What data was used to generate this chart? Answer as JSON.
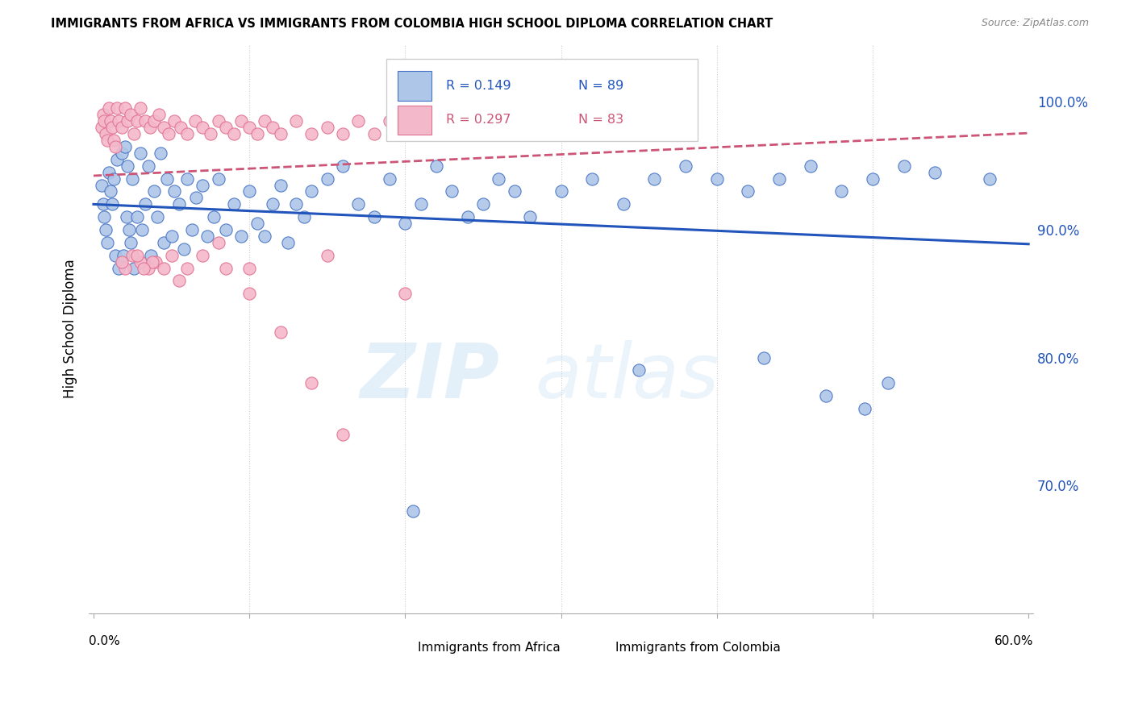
{
  "title": "IMMIGRANTS FROM AFRICA VS IMMIGRANTS FROM COLOMBIA HIGH SCHOOL DIPLOMA CORRELATION CHART",
  "source": "Source: ZipAtlas.com",
  "ylabel": "High School Diploma",
  "xlim": [
    0.0,
    0.6
  ],
  "ylim": [
    0.6,
    1.045
  ],
  "watermark_zip": "ZIP",
  "watermark_atlas": "atlas",
  "legend_africa_R": "R = 0.149",
  "legend_africa_N": "N = 89",
  "legend_colombia_R": "R = 0.297",
  "legend_colombia_N": "N = 83",
  "africa_fill_color": "#aec6e8",
  "africa_edge_color": "#4472c4",
  "colombia_fill_color": "#f4b8cb",
  "colombia_edge_color": "#e07090",
  "africa_line_color": "#2255bb",
  "colombia_line_color": "#cc5577",
  "ytick_values": [
    0.7,
    0.8,
    0.9,
    1.0
  ],
  "ytick_labels": [
    "70.0%",
    "80.0%",
    "90.0%",
    "100.0%"
  ],
  "africa_x": [
    0.005,
    0.006,
    0.007,
    0.008,
    0.009,
    0.01,
    0.011,
    0.012,
    0.013,
    0.014,
    0.015,
    0.016,
    0.018,
    0.019,
    0.02,
    0.021,
    0.022,
    0.023,
    0.024,
    0.025,
    0.026,
    0.028,
    0.03,
    0.031,
    0.033,
    0.035,
    0.037,
    0.039,
    0.041,
    0.043,
    0.045,
    0.047,
    0.05,
    0.052,
    0.055,
    0.058,
    0.06,
    0.063,
    0.066,
    0.07,
    0.073,
    0.077,
    0.08,
    0.085,
    0.09,
    0.095,
    0.1,
    0.105,
    0.11,
    0.115,
    0.12,
    0.125,
    0.13,
    0.135,
    0.14,
    0.15,
    0.16,
    0.17,
    0.18,
    0.19,
    0.2,
    0.21,
    0.22,
    0.23,
    0.24,
    0.25,
    0.26,
    0.27,
    0.28,
    0.3,
    0.32,
    0.34,
    0.36,
    0.38,
    0.4,
    0.42,
    0.44,
    0.46,
    0.48,
    0.5,
    0.52,
    0.54,
    0.35,
    0.43,
    0.47,
    0.495,
    0.51,
    0.575,
    0.205
  ],
  "africa_y": [
    0.935,
    0.92,
    0.91,
    0.9,
    0.89,
    0.945,
    0.93,
    0.92,
    0.94,
    0.88,
    0.955,
    0.87,
    0.96,
    0.88,
    0.965,
    0.91,
    0.95,
    0.9,
    0.89,
    0.94,
    0.87,
    0.91,
    0.96,
    0.9,
    0.92,
    0.95,
    0.88,
    0.93,
    0.91,
    0.96,
    0.89,
    0.94,
    0.895,
    0.93,
    0.92,
    0.885,
    0.94,
    0.9,
    0.925,
    0.935,
    0.895,
    0.91,
    0.94,
    0.9,
    0.92,
    0.895,
    0.93,
    0.905,
    0.895,
    0.92,
    0.935,
    0.89,
    0.92,
    0.91,
    0.93,
    0.94,
    0.95,
    0.92,
    0.91,
    0.94,
    0.905,
    0.92,
    0.95,
    0.93,
    0.91,
    0.92,
    0.94,
    0.93,
    0.91,
    0.93,
    0.94,
    0.92,
    0.94,
    0.95,
    0.94,
    0.93,
    0.94,
    0.95,
    0.93,
    0.94,
    0.95,
    0.945,
    0.79,
    0.8,
    0.77,
    0.76,
    0.78,
    0.94,
    0.68
  ],
  "colombia_x": [
    0.005,
    0.006,
    0.007,
    0.008,
    0.009,
    0.01,
    0.011,
    0.012,
    0.013,
    0.014,
    0.015,
    0.016,
    0.018,
    0.02,
    0.022,
    0.024,
    0.026,
    0.028,
    0.03,
    0.033,
    0.036,
    0.039,
    0.042,
    0.045,
    0.048,
    0.052,
    0.056,
    0.06,
    0.065,
    0.07,
    0.075,
    0.08,
    0.085,
    0.09,
    0.095,
    0.1,
    0.105,
    0.11,
    0.115,
    0.12,
    0.13,
    0.14,
    0.15,
    0.16,
    0.17,
    0.18,
    0.19,
    0.2,
    0.21,
    0.22,
    0.23,
    0.24,
    0.25,
    0.26,
    0.27,
    0.28,
    0.29,
    0.3,
    0.31,
    0.32,
    0.2,
    0.15,
    0.1,
    0.08,
    0.06,
    0.05,
    0.04,
    0.035,
    0.03,
    0.025,
    0.02,
    0.018,
    0.16,
    0.14,
    0.12,
    0.1,
    0.085,
    0.07,
    0.055,
    0.045,
    0.038,
    0.032,
    0.028
  ],
  "colombia_y": [
    0.98,
    0.99,
    0.985,
    0.975,
    0.97,
    0.995,
    0.985,
    0.98,
    0.97,
    0.965,
    0.995,
    0.985,
    0.98,
    0.995,
    0.985,
    0.99,
    0.975,
    0.985,
    0.995,
    0.985,
    0.98,
    0.985,
    0.99,
    0.98,
    0.975,
    0.985,
    0.98,
    0.975,
    0.985,
    0.98,
    0.975,
    0.985,
    0.98,
    0.975,
    0.985,
    0.98,
    0.975,
    0.985,
    0.98,
    0.975,
    0.985,
    0.975,
    0.98,
    0.975,
    0.985,
    0.975,
    0.985,
    0.98,
    0.985,
    0.98,
    0.975,
    0.985,
    0.98,
    0.975,
    0.985,
    0.98,
    0.975,
    0.985,
    0.98,
    0.975,
    0.85,
    0.88,
    0.87,
    0.89,
    0.87,
    0.88,
    0.875,
    0.87,
    0.875,
    0.88,
    0.87,
    0.875,
    0.74,
    0.78,
    0.82,
    0.85,
    0.87,
    0.88,
    0.86,
    0.87,
    0.875,
    0.87,
    0.88
  ]
}
